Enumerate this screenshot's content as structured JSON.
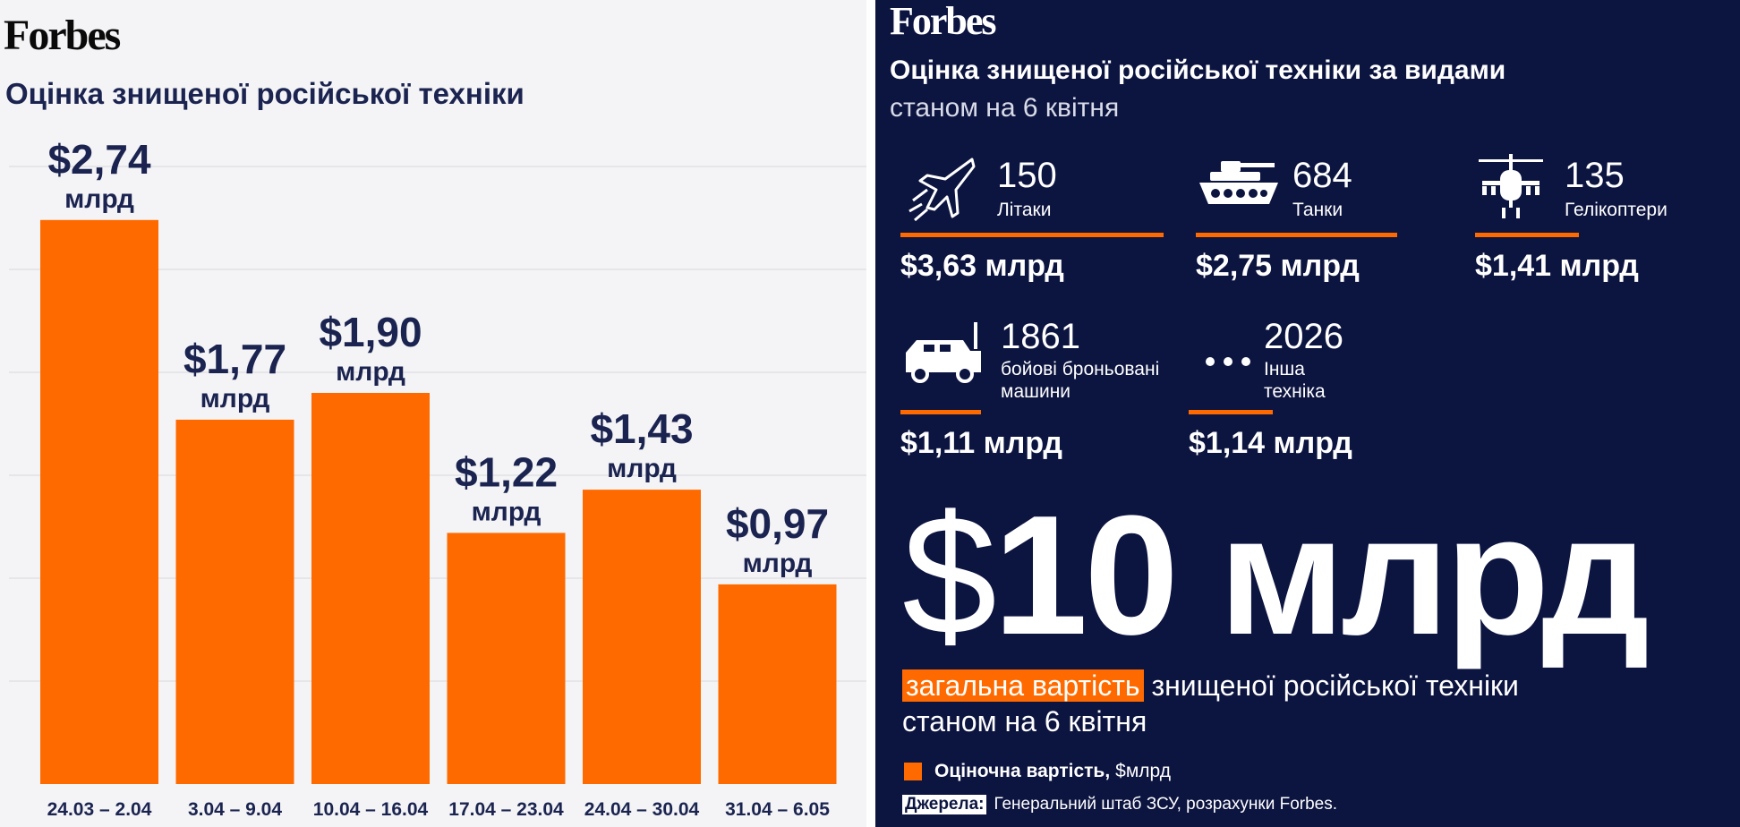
{
  "left": {
    "logo": "Forbes",
    "title": "Оцінка знищеної російської техніки"
  },
  "chart_data": {
    "type": "bar",
    "title": "Оцінка знищеної російської техніки",
    "categories": [
      "24.03 – 2.04",
      "3.04 – 9.04",
      "10.04 – 16.04",
      "17.04 – 23.04",
      "24.04 – 30.04",
      "31.04 – 6.05"
    ],
    "values": [
      2.74,
      1.77,
      1.9,
      1.22,
      1.43,
      0.97
    ],
    "value_labels": [
      "$2,74",
      "$1,77",
      "$1,90",
      "$1,22",
      "$1,43",
      "$0,97"
    ],
    "unit_label": "млрд",
    "ylim": [
      0,
      3.2
    ],
    "grid": true,
    "bar_color": "#ff6a00",
    "text_color": "#1b2450"
  },
  "right": {
    "logo": "Forbes",
    "title": "Оцінка знищеної російської техніки за видами",
    "subtitle": "станом на 6 квітня",
    "categories": [
      {
        "icon": "plane-icon",
        "count": "150",
        "label": "Літаки",
        "value": "$3,63 млрд",
        "cost": 3.63
      },
      {
        "icon": "tank-icon",
        "count": "684",
        "label": "Танки",
        "value": "$2,75 млрд",
        "cost": 2.75
      },
      {
        "icon": "helicopter-icon",
        "count": "135",
        "label": "Гелікоптери",
        "value": "$1,41 млрд",
        "cost": 1.41
      },
      {
        "icon": "armored-vehicle-icon",
        "count": "1861",
        "label_line1": "бойові броньовані",
        "label_line2": "машини",
        "value": "$1,11 млрд",
        "cost": 1.11
      },
      {
        "icon": "dots-icon",
        "count": "2026",
        "label_line1": "Інша",
        "label_line2": "техніка",
        "value": "$1,14 млрд",
        "cost": 1.14
      }
    ],
    "total": {
      "amount": "$10 млрд",
      "dollar": "$",
      "number": "10",
      "unit": "млрд",
      "desc_highlight": "загальна вартість",
      "desc_rest": "знищеної російської техніки",
      "desc_line2": "станом на 6 квітня"
    },
    "legend": {
      "bold": "Оціночна вартість,",
      "rest": "$млрд"
    },
    "source": {
      "tag": "Джерела:",
      "text": "Генеральний штаб ЗСУ, розрахунки Forbes."
    },
    "accent_color": "#ff6a00",
    "background_color": "#0c1440"
  }
}
